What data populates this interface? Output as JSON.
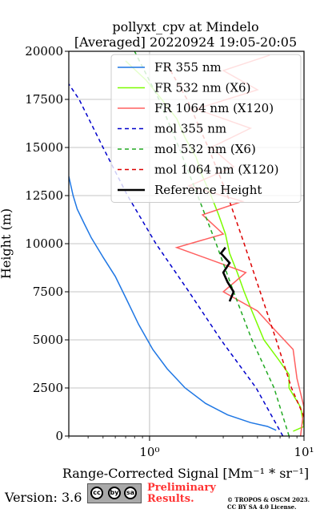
{
  "chart_data": {
    "type": "line",
    "title": "pollyxt_cpv at Mindelo",
    "subtitle": "[Averaged] 20220924 19:05-20:05",
    "xlabel": "Range-Corrected Signal [Mm⁻¹ * sr⁻¹]",
    "ylabel": "Height (m)",
    "x_scale": "log",
    "xlim": [
      0.3,
      10
    ],
    "ylim": [
      0,
      20000
    ],
    "x_ticks": [
      1,
      10
    ],
    "x_tick_labels": [
      "10⁰",
      "10¹"
    ],
    "y_ticks": [
      0,
      2500,
      5000,
      7500,
      10000,
      12500,
      15000,
      17500,
      20000
    ],
    "y_tick_labels": [
      "0",
      "2500",
      "5000",
      "7500",
      "10000",
      "12500",
      "15000",
      "17500",
      "20000"
    ],
    "grid": true,
    "legend_position": "top-right",
    "series": [
      {
        "name": "FR 355 nm",
        "color": "#1f77e4",
        "style": "solid",
        "points": [
          [
            6.6,
            300
          ],
          [
            5.8,
            500
          ],
          [
            4.5,
            700
          ],
          [
            3.2,
            1100
          ],
          [
            2.3,
            1700
          ],
          [
            1.7,
            2500
          ],
          [
            1.3,
            3500
          ],
          [
            1.05,
            4500
          ],
          [
            0.85,
            5800
          ],
          [
            0.72,
            7000
          ],
          [
            0.6,
            8300
          ],
          [
            0.5,
            9300
          ],
          [
            0.42,
            10300
          ],
          [
            0.38,
            11000
          ],
          [
            0.34,
            11800
          ],
          [
            0.32,
            12500
          ],
          [
            0.3,
            13500
          ]
        ]
      },
      {
        "name": "FR 532 nm (X6)",
        "color": "#7cfc00",
        "style": "solid",
        "points": [
          [
            8.5,
            250
          ],
          [
            10,
            500
          ],
          [
            9.5,
            1500
          ],
          [
            8,
            2500
          ],
          [
            8,
            3200
          ],
          [
            6.8,
            4000
          ],
          [
            5.5,
            5000
          ],
          [
            5,
            5800
          ],
          [
            4.6,
            6500
          ],
          [
            4.1,
            7500
          ],
          [
            3.7,
            8500
          ],
          [
            3.3,
            9500
          ],
          [
            3.1,
            10500
          ],
          [
            2.8,
            11500
          ],
          [
            2.5,
            12500
          ],
          [
            2.2,
            13500
          ],
          [
            2.0,
            14500
          ],
          [
            1.7,
            15500
          ],
          [
            1.5,
            16500
          ],
          [
            1.2,
            17500
          ],
          [
            0.95,
            18500
          ],
          [
            0.7,
            19500
          ]
        ]
      },
      {
        "name": "FR 1064 nm (X120)",
        "color": "#ff6060",
        "style": "solid",
        "points": [
          [
            9.5,
            0
          ],
          [
            10,
            1500
          ],
          [
            9,
            3000
          ],
          [
            8.5,
            4500
          ],
          [
            6.5,
            5500
          ],
          [
            5,
            6500
          ],
          [
            3,
            7500
          ],
          [
            4.2,
            8500
          ],
          [
            1.5,
            9800
          ],
          [
            3,
            10500
          ],
          [
            2.2,
            11500
          ],
          [
            4,
            12200
          ],
          [
            1.8,
            13000
          ],
          [
            3.5,
            14000
          ],
          [
            2.5,
            15000
          ],
          [
            4.5,
            16000
          ],
          [
            2,
            17000
          ],
          [
            5,
            18000
          ],
          [
            3,
            19000
          ],
          [
            6,
            19800
          ]
        ]
      },
      {
        "name": "mol 355 nm",
        "color": "#0000cc",
        "style": "dashed",
        "points": [
          [
            7.3,
            0
          ],
          [
            4.9,
            2500
          ],
          [
            2.9,
            5000
          ],
          [
            1.8,
            7500
          ],
          [
            1.1,
            10000
          ],
          [
            0.72,
            12500
          ],
          [
            0.5,
            15000
          ],
          [
            0.35,
            17500
          ],
          [
            0.3,
            18300
          ]
        ]
      },
      {
        "name": "mol 532 nm (X6)",
        "color": "#22aa22",
        "style": "dashed",
        "points": [
          [
            8.0,
            0
          ],
          [
            6.4,
            2500
          ],
          [
            4.6,
            5000
          ],
          [
            3.5,
            7500
          ],
          [
            2.7,
            10000
          ],
          [
            2.05,
            12500
          ],
          [
            1.55,
            15000
          ],
          [
            1.15,
            17500
          ],
          [
            0.8,
            20000
          ]
        ]
      },
      {
        "name": "mol 1064 nm (X120)",
        "color": "#dd0000",
        "style": "dashed",
        "points": [
          [
            10,
            1000
          ],
          [
            8.3,
            2500
          ],
          [
            6.6,
            5000
          ],
          [
            5.2,
            7500
          ],
          [
            4.1,
            10000
          ],
          [
            3.2,
            12500
          ],
          [
            2.4,
            15000
          ],
          [
            1.75,
            17500
          ],
          [
            1.3,
            19300
          ]
        ]
      },
      {
        "name": "Reference Height",
        "color": "#000000",
        "style": "solid",
        "points": [
          [
            3.3,
            7000
          ],
          [
            3.5,
            7500
          ],
          [
            3.2,
            8000
          ],
          [
            3.0,
            8500
          ],
          [
            3.3,
            9000
          ],
          [
            2.9,
            9500
          ],
          [
            3.1,
            9800
          ]
        ]
      }
    ]
  },
  "footer": {
    "version_text": "Version: 3.6",
    "license_badge": [
      "cc",
      "by",
      "sa"
    ],
    "preliminary_text_line1": "Preliminary",
    "preliminary_text_line2": "Results.",
    "copyright_line1": "© TROPOS & OSCM 2023.",
    "copyright_line2": "CC BY SA 4.0 License."
  }
}
